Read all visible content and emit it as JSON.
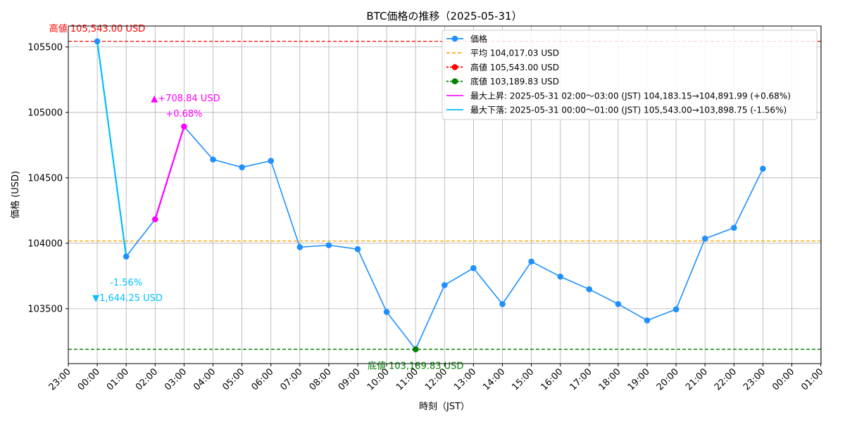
{
  "chart_data": {
    "type": "line",
    "title": "BTC価格の推移（2025-05-31）",
    "xlabel": "時刻（JST）",
    "ylabel": "価格 (USD)",
    "x_tick_labels": [
      "23:00",
      "00:00",
      "01:00",
      "02:00",
      "03:00",
      "04:00",
      "05:00",
      "06:00",
      "07:00",
      "08:00",
      "09:00",
      "10:00",
      "11:00",
      "12:00",
      "13:00",
      "14:00",
      "15:00",
      "16:00",
      "17:00",
      "18:00",
      "19:00",
      "20:00",
      "21:00",
      "22:00",
      "23:00",
      "00:00",
      "01:00"
    ],
    "y_ticks": [
      103500,
      104000,
      104500,
      105000,
      105500
    ],
    "y_tick_labels": [
      "103500",
      "104000",
      "104500",
      "105000",
      "105500"
    ],
    "ylim": [
      103080,
      105660
    ],
    "grid": true,
    "legend_position": "top-right",
    "series": [
      {
        "name": "価格",
        "color": "#1e90ff",
        "x": [
          "00:00",
          "01:00",
          "02:00",
          "03:00",
          "04:00",
          "05:00",
          "06:00",
          "07:00",
          "08:00",
          "09:00",
          "10:00",
          "11:00",
          "12:00",
          "13:00",
          "14:00",
          "15:00",
          "16:00",
          "17:00",
          "18:00",
          "19:00",
          "20:00",
          "21:00",
          "22:00",
          "23:00"
        ],
        "values": [
          105543.0,
          103898.75,
          104183.15,
          104891.99,
          104640,
          104580,
          104630,
          103970,
          103985,
          103955,
          103475,
          103189.83,
          103680,
          103810,
          103535,
          103860,
          103745,
          103648,
          103535,
          103410,
          103495,
          104035,
          104118,
          104570
        ]
      }
    ],
    "reference_lines": [
      {
        "name": "平均 104,017.03 USD",
        "value": 104017.03,
        "color": "#ffa500",
        "style": "dashed"
      },
      {
        "name": "高値 105,543.00 USD",
        "value": 105543.0,
        "color": "#ff0000",
        "style": "dashed"
      },
      {
        "name": "底値 103,189.83 USD",
        "value": 103189.83,
        "color": "#008000",
        "style": "dashed"
      }
    ],
    "highlight_segments": [
      {
        "name": "最大上昇: 2025-05-31 02:00〜03:00 (JST)  104,183.15→104,891.99 (+0.68%)",
        "from_index": 2,
        "to_index": 3,
        "color": "#ff00ff"
      },
      {
        "name": "最大下落: 2025-05-31 00:00〜01:00 (JST)  105,543.00→103,898.75 (-1.56%)",
        "from_index": 0,
        "to_index": 1,
        "color": "#00bfff"
      }
    ],
    "annotations": {
      "high_label": "高値 105,543.00 USD",
      "low_label": "底値 103,189.83 USD",
      "rise_amount": "▲+708.84 USD",
      "rise_pct": "+0.68%",
      "fall_pct": "-1.56%",
      "fall_amount": "▼1,644.25 USD"
    },
    "colors": {
      "price": "#1e90ff",
      "average": "#ffa500",
      "high": "#ff0000",
      "low": "#008000",
      "rise": "#ff00ff",
      "fall": "#00bfff"
    }
  }
}
